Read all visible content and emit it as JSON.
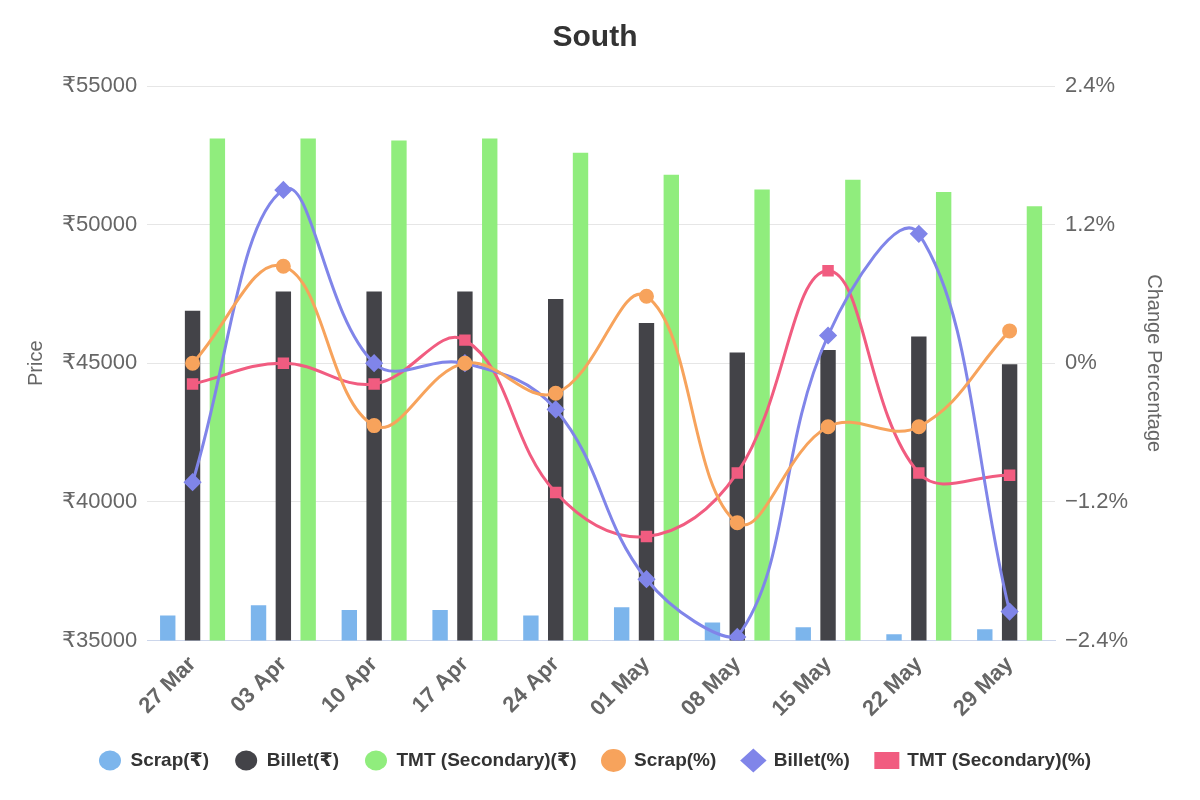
{
  "chart_data": {
    "type": "bar",
    "title": "South",
    "y_label": "Price",
    "y2_label": "Change Percentage",
    "categories": [
      "27 Mar",
      "03 Apr",
      "10 Apr",
      "17 Apr",
      "24 Apr",
      "01 May",
      "08 May",
      "15 May",
      "22 May",
      "29 May"
    ],
    "ylim": [
      35000,
      55000
    ],
    "yticks": [
      {
        "value": 35000,
        "label": "₹35000"
      },
      {
        "value": 40000,
        "label": "₹40000"
      },
      {
        "value": 45000,
        "label": "₹45000"
      },
      {
        "value": 50000,
        "label": "₹50000"
      },
      {
        "value": 55000,
        "label": "₹55000"
      }
    ],
    "y2lim": [
      -2.4,
      2.4
    ],
    "y2ticks": [
      {
        "value": -2.4,
        "label": "−2.4%"
      },
      {
        "value": -1.2,
        "label": "−1.2%"
      },
      {
        "value": 0,
        "label": "0%"
      },
      {
        "value": 1.2,
        "label": "1.2%"
      },
      {
        "value": 2.4,
        "label": "2.4%"
      }
    ],
    "grid": true,
    "legend": "bottom",
    "series": [
      {
        "name": "Scrap(₹)",
        "type": "bar",
        "color": "#7cb5ec",
        "values": [
          35900,
          36270,
          36100,
          36100,
          35900,
          36200,
          35650,
          35480,
          35220,
          35400
        ]
      },
      {
        "name": "Billet(₹)",
        "type": "bar",
        "color": "#434348",
        "values": [
          46890,
          47590,
          47590,
          47590,
          47320,
          46450,
          45390,
          45480,
          45960,
          44960
        ]
      },
      {
        "name": "TMT (Secondary)(₹)",
        "type": "bar",
        "color": "#90ed7d",
        "values": [
          53110,
          53110,
          53030,
          53110,
          52590,
          51800,
          51270,
          51620,
          51180,
          50660
        ]
      },
      {
        "name": "Scrap(%)",
        "type": "line",
        "axis": "y2",
        "color": "#f7a35c",
        "marker": "circle",
        "values": [
          0,
          0.84,
          -0.54,
          0,
          -0.26,
          0.58,
          -1.38,
          -0.55,
          -0.55,
          0.28
        ]
      },
      {
        "name": "Billet(%)",
        "type": "line",
        "axis": "y2",
        "color": "#8085e9",
        "marker": "diamond",
        "values": [
          -1.03,
          1.5,
          0,
          0,
          -0.4,
          -1.87,
          -2.37,
          0.24,
          1.12,
          -2.15
        ]
      },
      {
        "name": "TMT (Secondary)(%)",
        "type": "line",
        "axis": "y2",
        "color": "#f15c80",
        "marker": "square",
        "values": [
          -0.18,
          0,
          -0.18,
          0.2,
          -1.12,
          -1.5,
          -0.95,
          0.8,
          -0.95,
          -0.97
        ]
      }
    ]
  }
}
